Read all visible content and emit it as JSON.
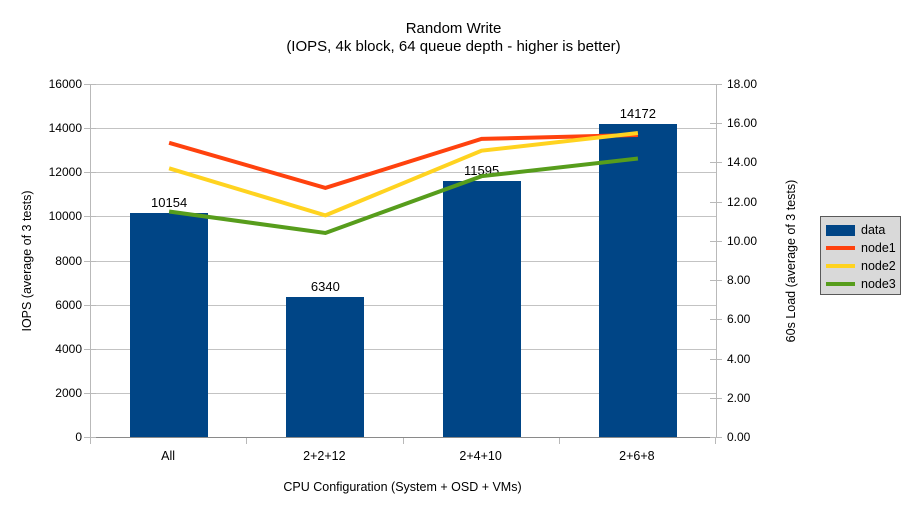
{
  "chart_data": {
    "type": "bar+line",
    "title": "Random Write",
    "subtitle": "(IOPS, 4k block, 64 queue depth - higher is better)",
    "categories": [
      "All",
      "2+2+12",
      "2+4+10",
      "2+6+8"
    ],
    "x_axis_label": "CPU Configuration (System + OSD + VMs)",
    "left_axis": {
      "label": "IOPS (average of 3 tests)",
      "min": 0,
      "max": 16000,
      "step": 2000,
      "tick_labels": [
        "0",
        "2000",
        "4000",
        "6000",
        "8000",
        "10000",
        "12000",
        "14000",
        "16000"
      ]
    },
    "right_axis": {
      "label": "60s Load (average of 3 tests)",
      "min": 0,
      "max": 18,
      "step": 2,
      "tick_labels": [
        "0.00",
        "2.00",
        "4.00",
        "6.00",
        "8.00",
        "10.00",
        "12.00",
        "14.00",
        "16.00",
        "18.00"
      ]
    },
    "bar_series": {
      "name": "data",
      "color": "#004586",
      "axis": "left",
      "values": [
        10154,
        6340,
        11595,
        14172
      ],
      "data_labels": [
        "10154",
        "6340",
        "11595",
        "14172"
      ]
    },
    "line_series": [
      {
        "name": "node1",
        "color": "#FF420E",
        "axis": "right",
        "values": [
          15.0,
          12.7,
          15.2,
          15.4
        ]
      },
      {
        "name": "node2",
        "color": "#FFD320",
        "axis": "right",
        "values": [
          13.7,
          11.3,
          14.6,
          15.5
        ]
      },
      {
        "name": "node3",
        "color": "#579D1C",
        "axis": "right",
        "values": [
          11.5,
          10.4,
          13.3,
          14.2
        ]
      }
    ],
    "legend": {
      "position": "right",
      "entries": [
        "data",
        "node1",
        "node2",
        "node3"
      ]
    },
    "grid": "horizontal"
  }
}
